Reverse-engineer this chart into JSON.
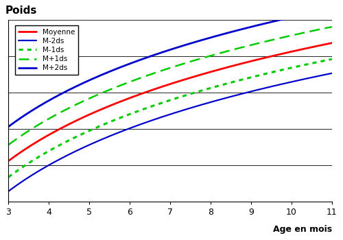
{
  "ylabel": "Poids",
  "xlabel": "Age en mois",
  "x_min": 3,
  "x_max": 11,
  "x_ticks": [
    3,
    4,
    5,
    6,
    7,
    8,
    9,
    10,
    11
  ],
  "series": {
    "Moyenne": {
      "color": "#ff0000",
      "linestyle": "solid",
      "linewidth": 2.0,
      "a": 5.5,
      "b": 4.5
    },
    "M-2ds": {
      "color": "#0000cc",
      "linestyle": "solid",
      "linewidth": 1.6,
      "a": 4.0,
      "b": 4.5
    },
    "M-1ds": {
      "color": "#00cc00",
      "linestyle": "dotted",
      "linewidth": 2.2,
      "a": 4.7,
      "b": 4.5
    },
    "M+1ds": {
      "color": "#00cc00",
      "linestyle": "dashed",
      "linewidth": 1.8,
      "a": 6.3,
      "b": 4.5
    },
    "M+2ds": {
      "color": "#0000cc",
      "linestyle": "solid",
      "linewidth": 2.0,
      "a": 7.2,
      "b": 4.5
    }
  },
  "legend_order": [
    "Moyenne",
    "M-2ds",
    "M-1ds",
    "M+1ds",
    "M+2ds"
  ],
  "grid_color": "#000000",
  "bg_color": "#ffffff",
  "y_min": 3.5,
  "y_max": 12.5,
  "figsize": [
    5.0,
    3.5
  ],
  "dpi": 100
}
